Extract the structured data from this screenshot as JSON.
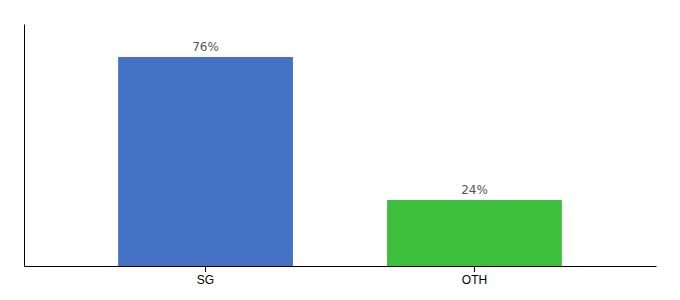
{
  "chart_data": {
    "type": "bar",
    "categories": [
      "SG",
      "OTH"
    ],
    "values": [
      76,
      24
    ],
    "value_labels": [
      "76%",
      "24%"
    ],
    "colors": [
      "#4472C4",
      "#3DBF3D"
    ],
    "ylim": [
      0,
      88
    ],
    "data_labels": true,
    "tick_labels": "x"
  }
}
